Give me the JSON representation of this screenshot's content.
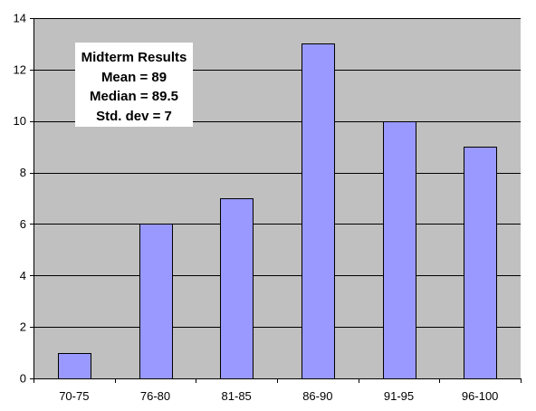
{
  "chart_data": {
    "type": "bar",
    "categories": [
      "70-75",
      "76-80",
      "81-85",
      "86-90",
      "91-95",
      "96-100"
    ],
    "values": [
      1,
      6,
      7,
      13,
      10,
      9
    ],
    "title": "",
    "xlabel": "",
    "ylabel": "",
    "ylim": [
      0,
      14
    ],
    "yticks": [
      0,
      2,
      4,
      6,
      8,
      10,
      12,
      14
    ],
    "grid": true,
    "legend": "none",
    "annotation": {
      "title": "Midterm Results",
      "lines": [
        "Mean = 89",
        "Median = 89.5",
        "Std. dev = 7"
      ]
    },
    "colors": {
      "bar_fill": "#9999ff",
      "bar_stroke": "#000000",
      "plot_background": "#c0c0c0",
      "gridline": "#000000",
      "annotation_background": "#ffffff"
    }
  }
}
